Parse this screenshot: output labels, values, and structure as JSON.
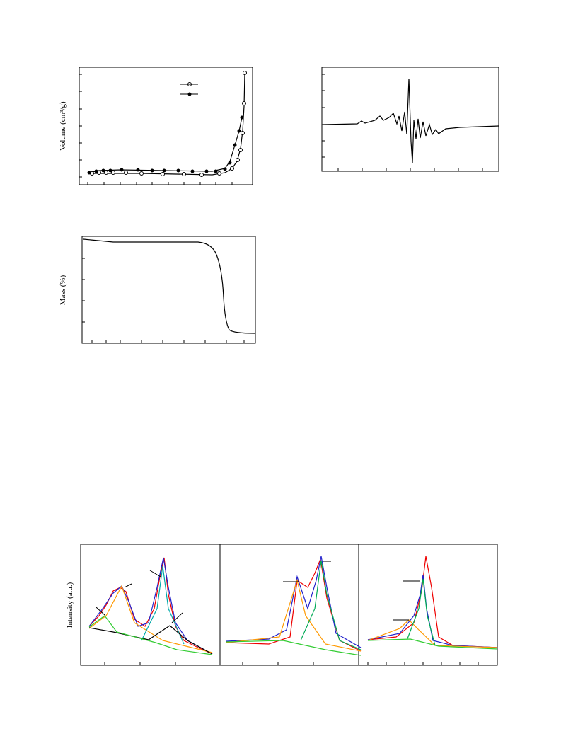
{
  "figures": [
    {
      "y_label": "Volume (cm³/g)"
    },
    {
      "y_label": "Mass (%)"
    },
    {
      "y_label": "Intensity (a.u.)"
    }
  ]
}
